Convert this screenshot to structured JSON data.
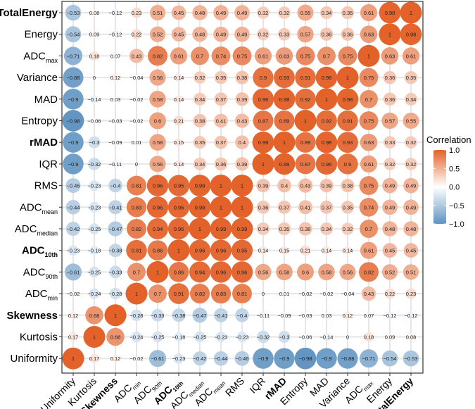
{
  "chart_data": {
    "type": "heatmap",
    "subtype": "correlation-circle-matrix",
    "legend": {
      "title": "Correlation",
      "ticks": [
        "1.0",
        "0.5",
        "0.0",
        "−0.5",
        "−1.0"
      ],
      "tick_values": [
        1,
        0.5,
        0,
        -0.5,
        -1
      ],
      "placement": "right"
    },
    "colors": {
      "negative": "#5F93C1",
      "zero": "#FFFFFF",
      "positive": "#E3622A",
      "grid": "#E6E6E6"
    },
    "columns": [
      {
        "name": "Uniformity",
        "sub": "",
        "bold": false
      },
      {
        "name": "Kurtosis",
        "sub": "",
        "bold": false
      },
      {
        "name": "Skewness",
        "sub": "",
        "bold": true
      },
      {
        "name": "ADC",
        "sub": "min",
        "bold": false
      },
      {
        "name": "ADC",
        "sub": "90th",
        "bold": false
      },
      {
        "name": "ADC",
        "sub": "10th",
        "bold": true
      },
      {
        "name": "ADC",
        "sub": "median",
        "bold": false
      },
      {
        "name": "ADC",
        "sub": "mean",
        "bold": false
      },
      {
        "name": "RMS",
        "sub": "",
        "bold": false
      },
      {
        "name": "IQR",
        "sub": "",
        "bold": false
      },
      {
        "name": "rMAD",
        "sub": "",
        "bold": true
      },
      {
        "name": "Entropy",
        "sub": "",
        "bold": false
      },
      {
        "name": "MAD",
        "sub": "",
        "bold": false
      },
      {
        "name": "Variance",
        "sub": "",
        "bold": false
      },
      {
        "name": "ADC",
        "sub": "max",
        "bold": false
      },
      {
        "name": "Energy",
        "sub": "",
        "bold": false
      },
      {
        "name": "TotalEnergy",
        "sub": "",
        "bold": true
      }
    ],
    "rows": [
      {
        "name": "TotalEnergy",
        "sub": "",
        "bold": true,
        "values": [
          -0.53,
          0.08,
          -0.12,
          0.23,
          0.51,
          0.45,
          0.48,
          0.49,
          0.49,
          0.32,
          0.32,
          0.55,
          0.34,
          0.35,
          0.61,
          0.98,
          1
        ]
      },
      {
        "name": "Energy",
        "sub": "",
        "bold": false,
        "values": [
          -0.54,
          0.09,
          -0.12,
          0.22,
          0.52,
          0.45,
          0.48,
          0.49,
          0.49,
          0.32,
          0.33,
          0.57,
          0.36,
          0.36,
          0.63,
          1,
          0.98
        ]
      },
      {
        "name": "ADC",
        "sub": "max",
        "bold": false,
        "values": [
          -0.71,
          0.18,
          0.07,
          0.43,
          0.82,
          0.61,
          0.7,
          0.74,
          0.75,
          0.61,
          0.63,
          0.75,
          0.7,
          0.75,
          1,
          0.63,
          0.61
        ]
      },
      {
        "name": "Variance",
        "sub": "",
        "bold": false,
        "values": [
          -0.88,
          0,
          0.12,
          -0.04,
          0.56,
          0.14,
          0.32,
          0.35,
          0.38,
          0.9,
          0.93,
          0.91,
          0.98,
          1,
          0.75,
          0.36,
          0.35
        ]
      },
      {
        "name": "MAD",
        "sub": "",
        "bold": false,
        "values": [
          -0.9,
          -0.14,
          0.03,
          -0.02,
          0.58,
          0.14,
          0.34,
          0.37,
          0.39,
          0.96,
          0.98,
          0.92,
          1,
          0.98,
          0.7,
          0.36,
          0.34
        ]
      },
      {
        "name": "Entropy",
        "sub": "",
        "bold": false,
        "values": [
          -0.98,
          -0.06,
          -0.03,
          -0.02,
          0.6,
          0.21,
          0.38,
          0.41,
          0.43,
          0.87,
          0.89,
          1,
          0.92,
          0.91,
          0.75,
          0.57,
          0.55
        ]
      },
      {
        "name": "rMAD",
        "sub": "",
        "bold": true,
        "values": [
          -0.9,
          -0.3,
          -0.09,
          0.01,
          0.58,
          0.15,
          0.35,
          0.37,
          0.4,
          0.99,
          1,
          0.89,
          0.98,
          0.93,
          0.63,
          0.33,
          0.32
        ]
      },
      {
        "name": "IQR",
        "sub": "",
        "bold": false,
        "values": [
          -0.9,
          -0.32,
          -0.11,
          0,
          0.56,
          0.14,
          0.34,
          0.36,
          0.39,
          1,
          0.99,
          0.87,
          0.96,
          0.9,
          0.61,
          0.32,
          0.32
        ]
      },
      {
        "name": "RMS",
        "sub": "",
        "bold": false,
        "values": [
          -0.46,
          -0.23,
          -0.4,
          0.81,
          0.96,
          0.95,
          0.99,
          1,
          1,
          0.39,
          0.4,
          0.43,
          0.39,
          0.38,
          0.75,
          0.49,
          0.49
        ]
      },
      {
        "name": "ADC",
        "sub": "mean",
        "bold": false,
        "values": [
          -0.44,
          -0.23,
          -0.41,
          0.83,
          0.96,
          0.96,
          0.99,
          1,
          1,
          0.36,
          0.37,
          0.41,
          0.37,
          0.35,
          0.74,
          0.49,
          0.49
        ]
      },
      {
        "name": "ADC",
        "sub": "median",
        "bold": false,
        "values": [
          -0.42,
          -0.25,
          -0.47,
          0.82,
          0.94,
          0.96,
          1,
          0.99,
          0.99,
          0.34,
          0.35,
          0.38,
          0.34,
          0.32,
          0.7,
          0.48,
          0.48
        ]
      },
      {
        "name": "ADC",
        "sub": "10th",
        "bold": true,
        "values": [
          -0.23,
          -0.18,
          -0.38,
          0.91,
          0.86,
          1,
          0.96,
          0.96,
          0.95,
          0.14,
          0.15,
          0.21,
          0.14,
          0.14,
          0.61,
          0.45,
          0.45
        ]
      },
      {
        "name": "ADC",
        "sub": "90th",
        "bold": false,
        "values": [
          -0.61,
          -0.25,
          -0.33,
          0.7,
          1,
          0.86,
          0.94,
          0.96,
          0.96,
          0.56,
          0.58,
          0.6,
          0.58,
          0.56,
          0.82,
          0.52,
          0.51
        ]
      },
      {
        "name": "ADC",
        "sub": "min",
        "bold": false,
        "values": [
          -0.02,
          -0.24,
          -0.28,
          1,
          0.7,
          0.91,
          0.82,
          0.83,
          0.81,
          0,
          0.01,
          -0.02,
          -0.02,
          -0.04,
          0.43,
          0.22,
          0.23
        ]
      },
      {
        "name": "Skewness",
        "sub": "",
        "bold": true,
        "values": [
          0.12,
          0.68,
          1,
          -0.28,
          -0.33,
          -0.38,
          -0.47,
          -0.41,
          -0.4,
          -0.11,
          -0.09,
          -0.03,
          0.03,
          0.12,
          0.07,
          -0.12,
          -0.12
        ]
      },
      {
        "name": "Kurtosis",
        "sub": "",
        "bold": false,
        "values": [
          0.17,
          1,
          0.68,
          -0.24,
          -0.25,
          -0.18,
          -0.25,
          -0.23,
          -0.23,
          -0.32,
          -0.3,
          -0.06,
          -0.14,
          0,
          0.18,
          0.09,
          0.08
        ]
      },
      {
        "name": "Uniformity",
        "sub": "",
        "bold": false,
        "values": [
          1,
          0.17,
          0.12,
          -0.02,
          -0.61,
          -0.23,
          -0.42,
          -0.44,
          -0.46,
          -0.9,
          -0.9,
          -0.98,
          -0.9,
          -0.88,
          -0.71,
          -0.54,
          -0.53
        ]
      }
    ],
    "range": [
      -1,
      1
    ]
  }
}
